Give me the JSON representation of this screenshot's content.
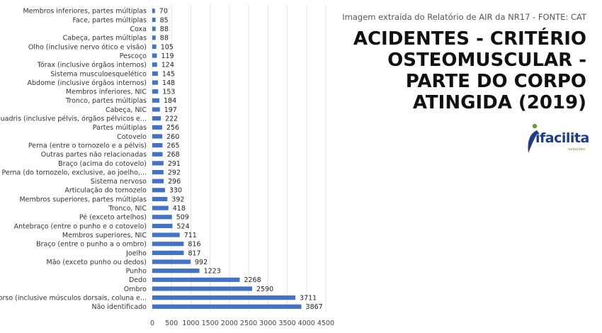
{
  "header": {
    "source_note": "Imagem extraída do Relatório de AIR da NR17 - FONTE: CAT",
    "title_lines": [
      "ACIDENTES - CRITÉRIO",
      "OSTEOMUSCULAR -",
      "PARTE DO CORPO",
      "ATINGIDA (2019)"
    ]
  },
  "logo": {
    "name": "ifacilita",
    "tagline": "soluções",
    "icon": "ifacilita-logo-icon",
    "colors": {
      "blue": "#1f3c88",
      "green": "#6a9a3a"
    }
  },
  "chart_data": {
    "type": "bar",
    "orientation": "horizontal",
    "title": "",
    "xlabel": "",
    "ylabel": "",
    "xlim": [
      0,
      4500
    ],
    "xticks": [
      0,
      500,
      1000,
      1500,
      2000,
      2500,
      3000,
      3500,
      4000,
      4500
    ],
    "grid": true,
    "legend": "none",
    "bar_color": "#4472c4",
    "categories": [
      "Membros inferiores, partes múltiplas",
      "Face, partes múltiplas",
      "Coxa",
      "Cabeça, partes múltiplas",
      "Olho (inclusive nervo ótico e visão)",
      "Pescoço",
      "Tórax (inclusive órgãos internos)",
      "Sistema musculoesquelético",
      "Abdome (inclusive órgãos internos)",
      "Membros inferiores, NIC",
      "Tronco, partes múltiplas",
      "Cabeça, NIC",
      "Quadris (inclusive pélvis, órgãos pélvicos e...",
      "Partes múltiplas",
      "Cotovelo",
      "Perna (entre o tornozelo e a pélvis)",
      "Outras partes não relacionadas",
      "Braço (acima do cotovelo)",
      "Perna (do tornozelo, exclusive, ao joelho,...",
      "Sistema nervoso",
      "Articulação do tornozelo",
      "Membros superiores, partes múltiplas",
      "Tronco, NIC",
      "Pé (exceto artelhos)",
      "Antebraço (entre o punho e o cotovelo)",
      "Membros superiores, NIC",
      "Braço (entre o punho a o ombro)",
      "Joelho",
      "Mão (exceto punho ou dedos)",
      "Punho",
      "Dedo",
      "Ombro",
      "Dorso (inclusive músculos dorsais, coluna e...",
      "Não identificado"
    ],
    "values": [
      70,
      85,
      88,
      88,
      105,
      119,
      124,
      145,
      148,
      153,
      184,
      197,
      222,
      256,
      260,
      265,
      268,
      291,
      292,
      296,
      330,
      392,
      418,
      509,
      524,
      711,
      816,
      817,
      992,
      1223,
      2268,
      2590,
      3711,
      3867
    ]
  }
}
